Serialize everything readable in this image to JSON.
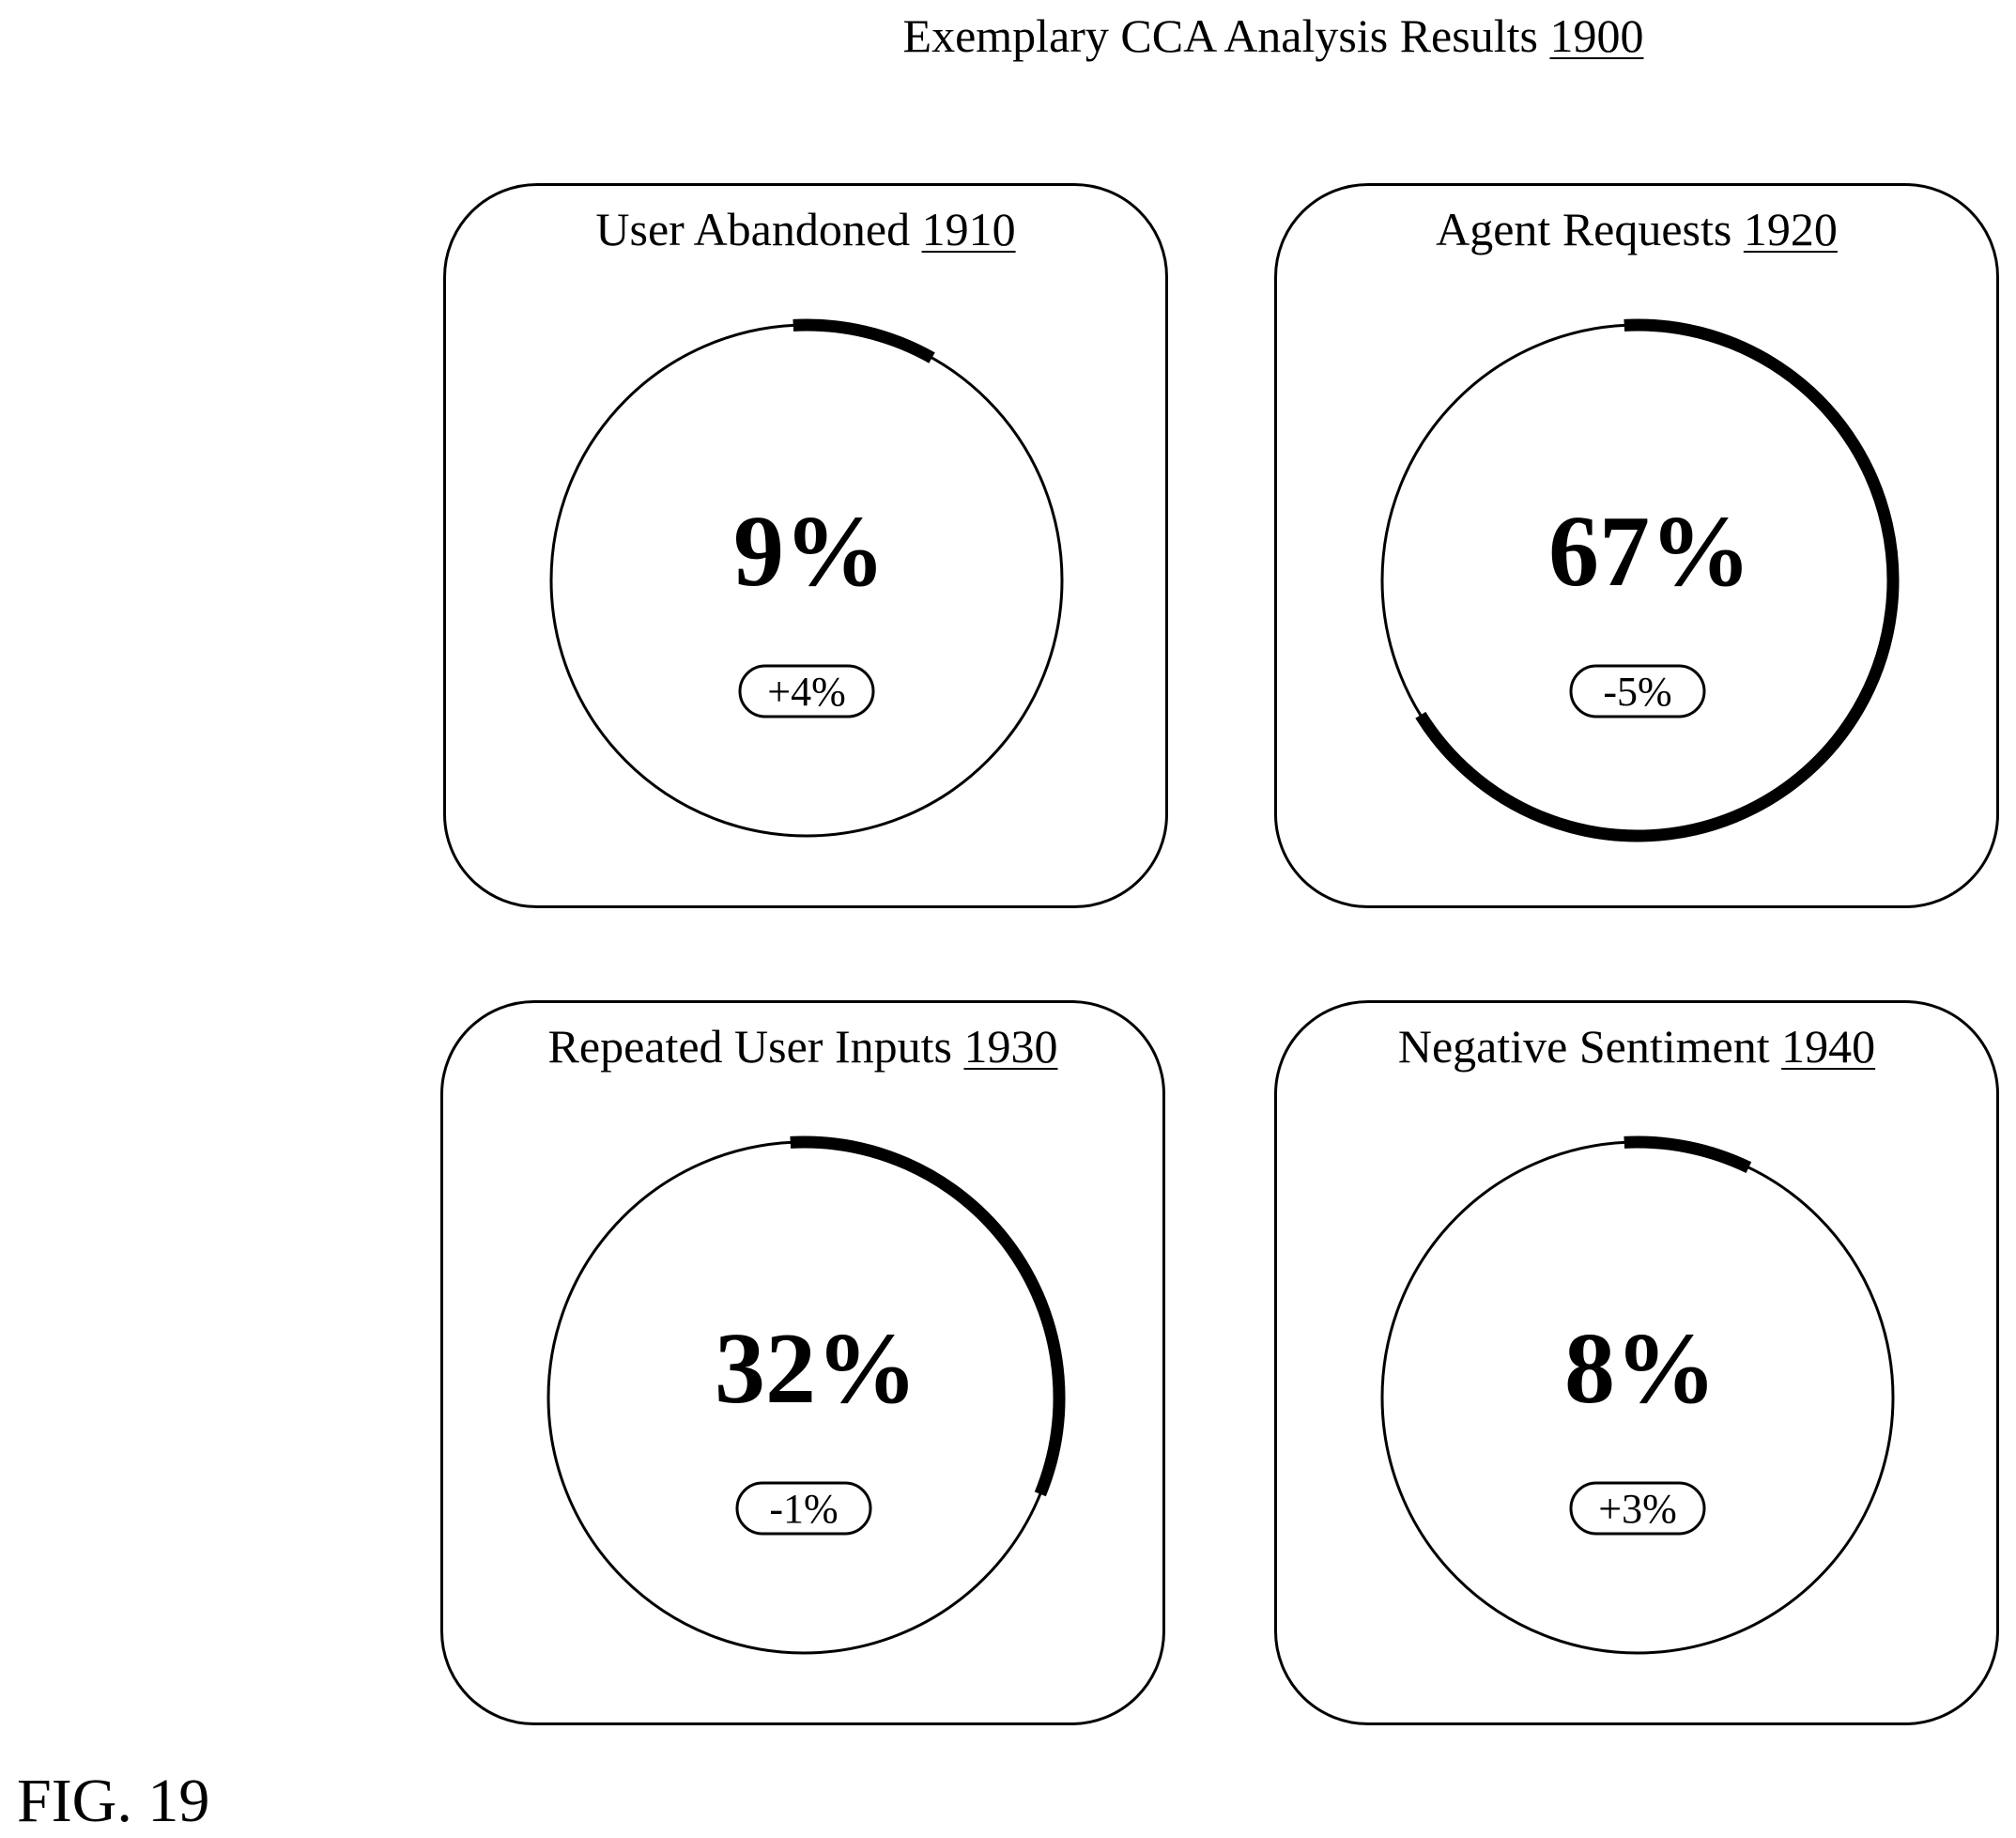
{
  "title": {
    "text": "Exemplary CCA Analysis Results",
    "ref": "1900"
  },
  "cards": [
    {
      "label": "User Abandoned",
      "ref": "1910",
      "value": "9%",
      "delta": "+4%",
      "fraction": 0.09
    },
    {
      "label": "Agent Requests",
      "ref": "1920",
      "value": "67%",
      "delta": "-5%",
      "fraction": 0.67
    },
    {
      "label": "Repeated User Inputs",
      "ref": "1930",
      "value": "32%",
      "delta": "-1%",
      "fraction": 0.32
    },
    {
      "label": "Negative Sentiment",
      "ref": "1940",
      "value": "8%",
      "delta": "+3%",
      "fraction": 0.08
    }
  ],
  "figure_label": "FIG. 19",
  "colors": {
    "stroke": "#000000",
    "background": "#ffffff"
  }
}
